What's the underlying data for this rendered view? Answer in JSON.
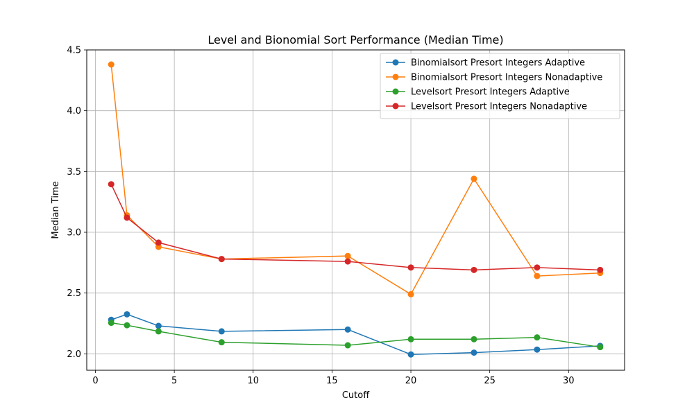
{
  "chart_data": {
    "type": "line",
    "title": "Level and Bionomial Sort Performance (Median Time)",
    "xlabel": "Cutoff",
    "ylabel": "Median Time",
    "xlim": [
      -0.55,
      33.55
    ],
    "ylim": [
      1.865,
      4.5
    ],
    "x_ticks": [
      0,
      5,
      10,
      15,
      20,
      25,
      30
    ],
    "y_ticks": [
      2.0,
      2.5,
      3.0,
      3.5,
      4.0,
      4.5
    ],
    "x_tick_labels": [
      "0",
      "5",
      "10",
      "15",
      "20",
      "25",
      "30"
    ],
    "y_tick_labels": [
      "2.0",
      "2.5",
      "3.0",
      "3.5",
      "4.0",
      "4.5"
    ],
    "grid": true,
    "legend_position": "top-right",
    "x": [
      1,
      2,
      4,
      8,
      16,
      20,
      24,
      28,
      32
    ],
    "series": [
      {
        "name": "Binomialsort Presort Integers Adaptive",
        "color": "#1f77b4",
        "values": [
          2.28,
          2.325,
          2.23,
          2.185,
          2.2,
          1.995,
          2.01,
          2.035,
          2.065
        ]
      },
      {
        "name": "Binomialsort Presort Integers Nonadaptive",
        "color": "#ff7f0e",
        "values": [
          4.38,
          3.14,
          2.88,
          2.78,
          2.805,
          2.49,
          3.44,
          2.64,
          2.665
        ]
      },
      {
        "name": "Levelsort Presort Integers Adaptive",
        "color": "#2ca02c",
        "values": [
          2.255,
          2.235,
          2.185,
          2.095,
          2.07,
          2.12,
          2.12,
          2.135,
          2.055
        ]
      },
      {
        "name": "Levelsort Presort Integers Nonadaptive",
        "color": "#d62728",
        "values": [
          3.395,
          3.12,
          2.915,
          2.78,
          2.76,
          2.71,
          2.69,
          2.71,
          2.69
        ]
      }
    ]
  }
}
